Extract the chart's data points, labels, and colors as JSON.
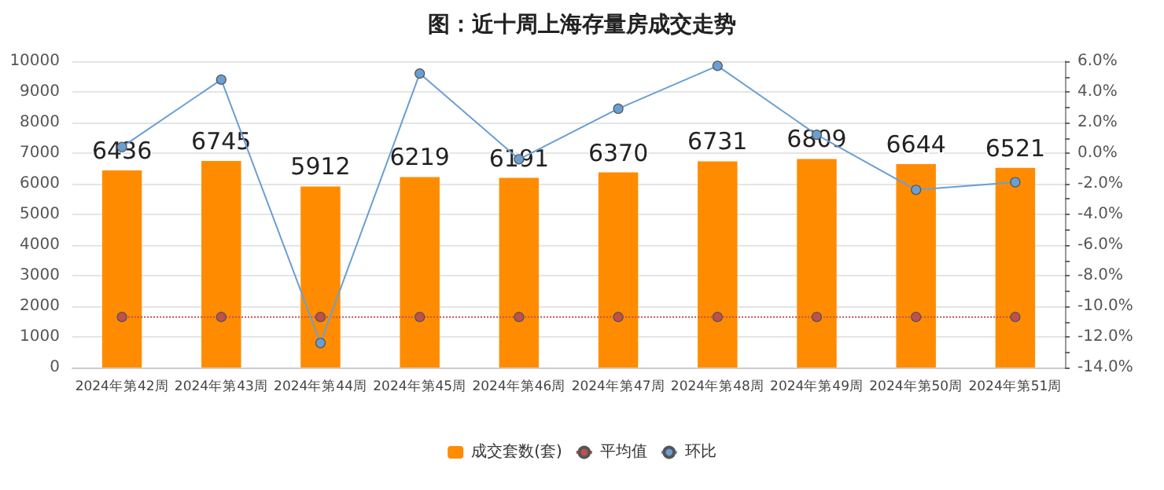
{
  "chart_data": {
    "type": "bar",
    "title": "图：近十周上海存量房成交走势",
    "categories": [
      "2024年第42周",
      "2024年第43周",
      "2024年第44周",
      "2024年第45周",
      "2024年第46周",
      "2024年第47周",
      "2024年第48周",
      "2024年第49周",
      "2024年第50周",
      "2024年第51周"
    ],
    "series": [
      {
        "name": "成交套数(套)",
        "color": "#ff8c00",
        "data_labels": true,
        "values": [
          6436,
          6745,
          5912,
          6219,
          6191,
          6370,
          6731,
          6809,
          6644,
          6521
        ]
      },
      {
        "name": "平均值",
        "type": "line",
        "color": "#c0504d",
        "marker": "circle",
        "line_style": "dotted",
        "values": [
          1650,
          1650,
          1650,
          1650,
          1650,
          1650,
          1650,
          1650,
          1650,
          1650
        ]
      },
      {
        "name": "环比",
        "type": "line",
        "axis": "y2",
        "color": "#6a9fd4",
        "marker": "circle",
        "line_style": "solid",
        "values": [
          0.4,
          4.8,
          -12.4,
          5.2,
          -0.4,
          2.9,
          5.7,
          1.2,
          -2.4,
          -1.9
        ]
      }
    ],
    "ylim": [
      0,
      10000
    ],
    "yticks": [
      0,
      1000,
      2000,
      3000,
      4000,
      5000,
      6000,
      7000,
      8000,
      9000,
      10000
    ],
    "y2lim": [
      -14,
      6
    ],
    "y2ticks": [
      {
        "value": -14,
        "label": "-14.0%"
      },
      {
        "value": -13,
        "label": null
      },
      {
        "value": -12,
        "label": "-12.0%"
      },
      {
        "value": -11,
        "label": null
      },
      {
        "value": -10,
        "label": "-10.0%"
      },
      {
        "value": -9,
        "label": null
      },
      {
        "value": -8,
        "label": "-8.0%"
      },
      {
        "value": -7,
        "label": null
      },
      {
        "value": -6,
        "label": "-6.0%"
      },
      {
        "value": -5,
        "label": null
      },
      {
        "value": -4,
        "label": "-4.0%"
      },
      {
        "value": -3,
        "label": null
      },
      {
        "value": -2,
        "label": "-2.0%"
      },
      {
        "value": -1,
        "label": null
      },
      {
        "value": 0,
        "label": "0.0%"
      },
      {
        "value": 1,
        "label": null
      },
      {
        "value": 2,
        "label": "2.0%"
      },
      {
        "value": 3,
        "label": null
      },
      {
        "value": 4,
        "label": "4.0%"
      },
      {
        "value": 5,
        "label": null
      },
      {
        "value": 6,
        "label": "6.0%"
      }
    ],
    "grid": "y",
    "legend": "bottom"
  }
}
